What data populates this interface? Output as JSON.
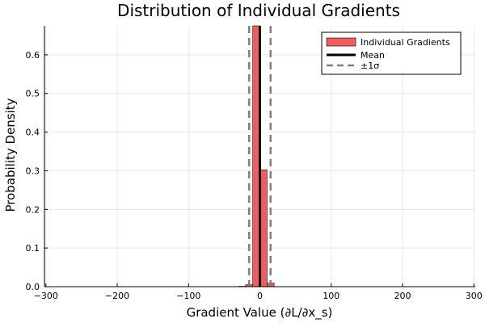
{
  "chart_data": {
    "type": "bar",
    "title": "Distribution of Individual Gradients",
    "xlabel": "Gradient Value (∂L/∂x_s)",
    "ylabel": "Probability Density",
    "xlim": [
      -302,
      302
    ],
    "ylim": [
      0,
      0.675
    ],
    "xticks": [
      -300,
      -200,
      -100,
      0,
      100,
      200,
      300
    ],
    "xtick_labels": [
      "−300",
      "−200",
      "−100",
      "0",
      "100",
      "200",
      "300"
    ],
    "yticks": [
      0.0,
      0.1,
      0.2,
      0.3,
      0.4,
      0.5,
      0.6
    ],
    "ytick_labels": [
      "0.0",
      "0.1",
      "0.2",
      "0.3",
      "0.4",
      "0.5",
      "0.6"
    ],
    "grid": true,
    "legend_position": "top-right",
    "bins": [
      {
        "x0": -30,
        "x1": -20,
        "value": 0.001
      },
      {
        "x0": -20,
        "x1": -10,
        "value": 0.005
      },
      {
        "x0": -10,
        "x1": 0,
        "value": 0.68
      },
      {
        "x0": 0,
        "x1": 10,
        "value": 0.302
      },
      {
        "x0": 10,
        "x1": 20,
        "value": 0.009
      }
    ],
    "series": [
      {
        "name": "Individual Gradients",
        "kind": "histogram",
        "color": "#f25c5c"
      },
      {
        "name": "Mean",
        "kind": "vline",
        "x": 0.0,
        "color": "#000000"
      },
      {
        "name": "±1σ",
        "kind": "vline-pair",
        "x": [
          -15,
          15
        ],
        "color": "#808080"
      }
    ]
  }
}
